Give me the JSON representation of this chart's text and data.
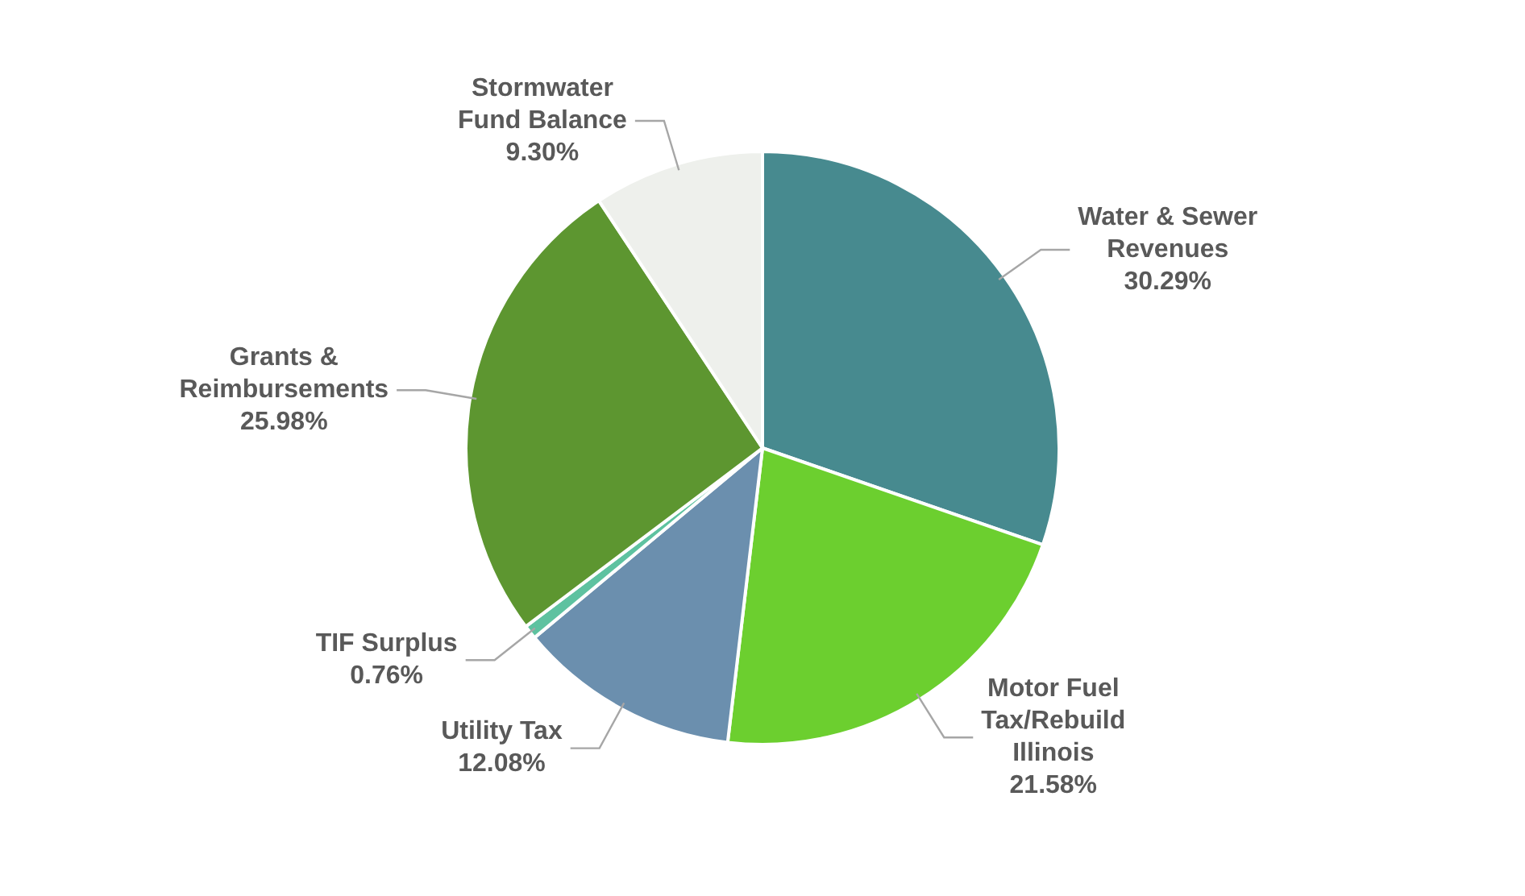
{
  "chart_data": {
    "type": "pie",
    "categories": [
      "Water & Sewer Revenues",
      "Motor Fuel Tax/Rebuild Illinois",
      "Utility Tax",
      "TIF Surplus",
      "Grants & Reimbursements",
      "Stormwater Fund Balance"
    ],
    "values": [
      30.29,
      21.58,
      12.08,
      0.76,
      25.98,
      9.3
    ],
    "value_labels": [
      "30.29%",
      "21.58%",
      "12.08%",
      "0.76%",
      "25.98%",
      "9.30%"
    ],
    "colors": [
      "#478a8f",
      "#6ccf2f",
      "#6b8fae",
      "#5ec2a0",
      "#5d9630",
      "#eef0ec"
    ],
    "legend": false
  }
}
